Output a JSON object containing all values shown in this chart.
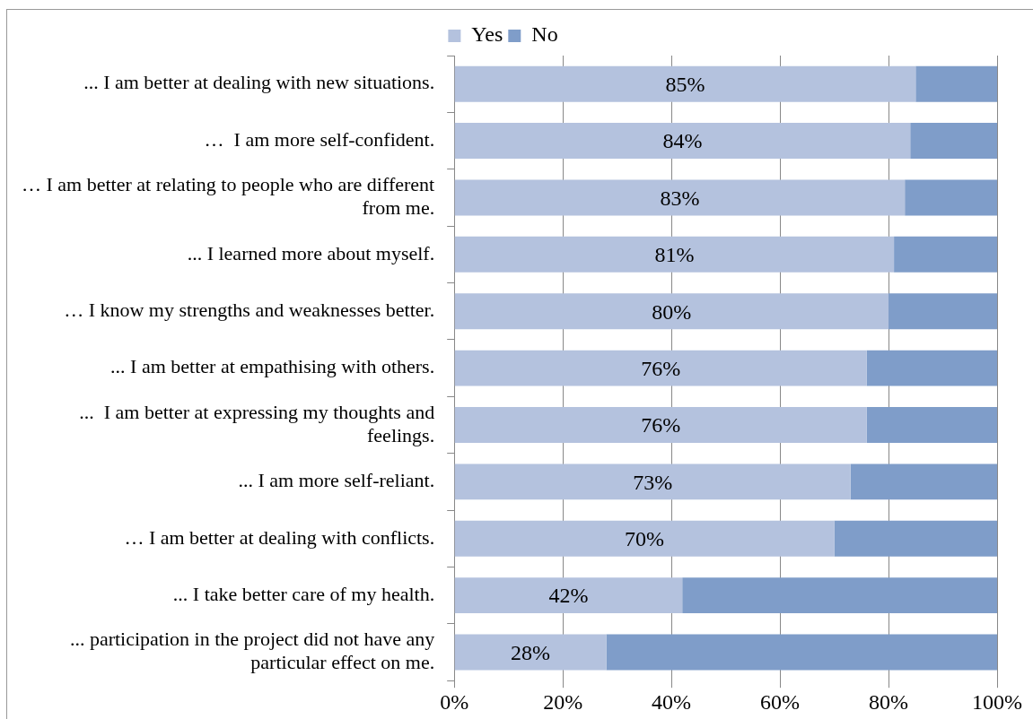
{
  "chart_data": {
    "type": "bar",
    "orientation": "horizontal",
    "stacked": true,
    "categories": [
      "... I am better at dealing with new situations.",
      "…  I am more self-confident.",
      "… I am better at relating to people who are different from me.",
      "... I learned more about myself.",
      "… I know my strengths and weaknesses better.",
      "... I am better at empathising with others.",
      "...  I am better at expressing my thoughts and feelings.",
      "... I am more self-reliant.",
      "… I am better at dealing with conflicts.",
      "... I take better care of my health.",
      "... participation in the project did not have any particular effect on me."
    ],
    "series": [
      {
        "name": "Yes",
        "color": "#b4c2de",
        "values": [
          85,
          84,
          83,
          81,
          80,
          76,
          76,
          73,
          70,
          42,
          28
        ],
        "value_labels": [
          "85%",
          "84%",
          "83%",
          "81%",
          "80%",
          "76%",
          "76%",
          "73%",
          "70%",
          "42%",
          "28%"
        ]
      },
      {
        "name": "No",
        "color": "#7f9dc9",
        "values": [
          15,
          16,
          17,
          19,
          20,
          24,
          24,
          27,
          30,
          58,
          72
        ]
      }
    ],
    "xlim": [
      0,
      100
    ],
    "xticks": [
      {
        "value": 0,
        "label": "0%"
      },
      {
        "value": 20,
        "label": "20%"
      },
      {
        "value": 40,
        "label": "40%"
      },
      {
        "value": 60,
        "label": "60%"
      },
      {
        "value": 80,
        "label": "80%"
      },
      {
        "value": 100,
        "label": "100%"
      }
    ],
    "grid": "x",
    "legend": "top"
  }
}
